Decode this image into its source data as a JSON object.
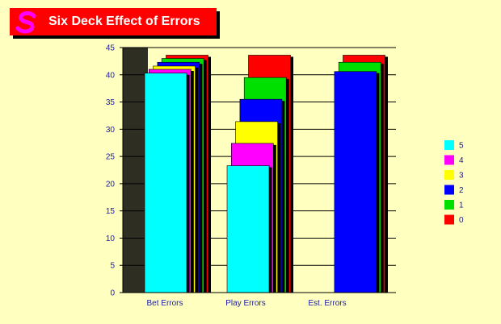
{
  "chart_data": {
    "type": "bar",
    "title": "Six Deck Effect of Errors",
    "xlabel": "",
    "ylabel": "",
    "ylim": [
      0,
      45
    ],
    "yticks": [
      0,
      5,
      10,
      15,
      20,
      25,
      30,
      35,
      40,
      45
    ],
    "grid": true,
    "legend": "right",
    "categories": [
      "Bet Errors",
      "Play Errors",
      "Est. Errors"
    ],
    "series": [
      {
        "name": "0",
        "color": "#ff0000",
        "values": [
          43.6,
          43.6,
          43.6
        ]
      },
      {
        "name": "1",
        "color": "#00e000",
        "values": [
          43.0,
          39.5,
          42.3
        ]
      },
      {
        "name": "2",
        "color": "#0000ff",
        "values": [
          42.3,
          35.5,
          40.6
        ]
      },
      {
        "name": "3",
        "color": "#ffff00",
        "values": [
          41.6,
          31.4,
          null
        ]
      },
      {
        "name": "4",
        "color": "#ff00ff",
        "values": [
          41.0,
          27.4,
          null
        ]
      },
      {
        "name": "5",
        "color": "#00ffff",
        "values": [
          40.3,
          23.3,
          null
        ]
      }
    ],
    "legend_order": [
      "5",
      "4",
      "3",
      "2",
      "1",
      "0"
    ]
  }
}
